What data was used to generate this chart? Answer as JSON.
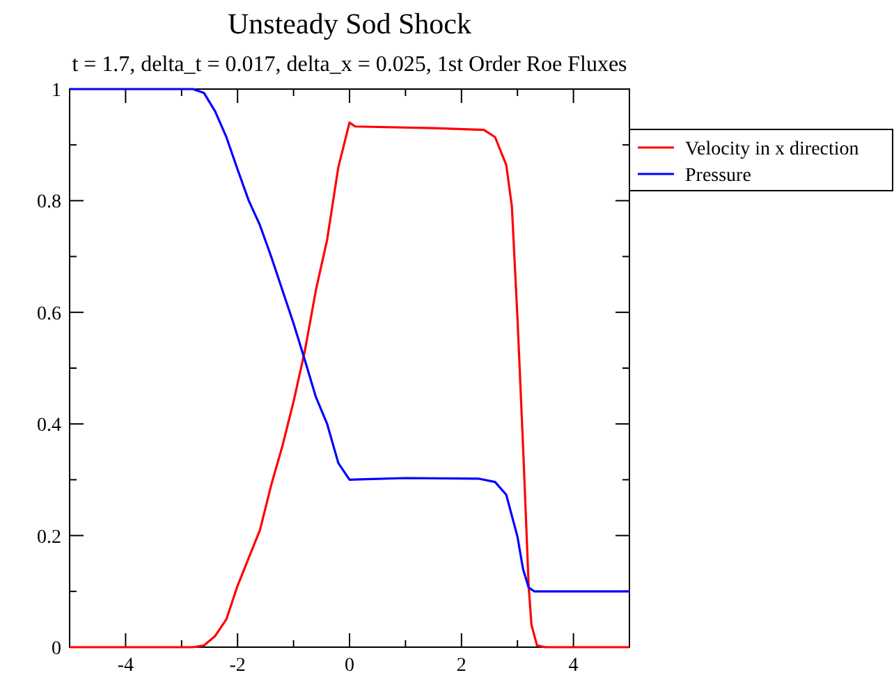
{
  "chart_data": {
    "type": "line",
    "title": "Unsteady Sod Shock",
    "subtitle": "t = 1.7, delta_t = 0.017, delta_x = 0.025, 1st Order Roe Fluxes",
    "xlim": [
      -5,
      5
    ],
    "ylim": [
      0,
      1
    ],
    "xticks": [
      {
        "value": -5,
        "label": null
      },
      -4,
      {
        "value": -3,
        "label": null
      },
      -2,
      {
        "value": -1,
        "label": null
      },
      0,
      {
        "value": 1,
        "label": null
      },
      2,
      {
        "value": 3,
        "label": null
      },
      4,
      {
        "value": 5,
        "label": null
      }
    ],
    "yticks": [
      0,
      {
        "value": 0.1,
        "label": null
      },
      0.2,
      {
        "value": 0.3,
        "label": null
      },
      0.4,
      {
        "value": 0.5,
        "label": null
      },
      0.6,
      {
        "value": 0.7,
        "label": null
      },
      0.8,
      {
        "value": 0.9,
        "label": null
      },
      1
    ],
    "grid": false,
    "legend": "top right",
    "line_style": "solid",
    "marker": "none",
    "series": [
      {
        "name": "Velocity in x direction",
        "color": "#ff0000",
        "x": [
          -5,
          -2.8,
          -2.6,
          -2.4,
          -2.2,
          -2.0,
          -1.8,
          -1.6,
          -1.4,
          -1.2,
          -1.0,
          -0.8,
          -0.6,
          -0.4,
          -0.2,
          0,
          0.1,
          1.5,
          2.4,
          2.6,
          2.8,
          2.9,
          3.0,
          3.1,
          3.2,
          3.25,
          3.35,
          3.5,
          5
        ],
        "values": [
          0,
          0,
          0.003,
          0.02,
          0.05,
          0.11,
          0.16,
          0.21,
          0.29,
          0.36,
          0.44,
          0.53,
          0.64,
          0.73,
          0.86,
          0.94,
          0.933,
          0.93,
          0.927,
          0.914,
          0.864,
          0.79,
          0.59,
          0.36,
          0.11,
          0.04,
          0.003,
          0,
          0
        ]
      },
      {
        "name": "Pressure",
        "color": "#0000ff",
        "x": [
          -5,
          -2.8,
          -2.6,
          -2.4,
          -2.2,
          -2.0,
          -1.8,
          -1.6,
          -1.4,
          -1.2,
          -1.0,
          -0.8,
          -0.6,
          -0.4,
          -0.2,
          0,
          1,
          2.3,
          2.6,
          2.8,
          3.0,
          3.1,
          3.2,
          3.3,
          5
        ],
        "values": [
          1,
          1,
          0.993,
          0.96,
          0.914,
          0.856,
          0.8,
          0.756,
          0.7,
          0.64,
          0.58,
          0.515,
          0.448,
          0.4,
          0.33,
          0.3,
          0.303,
          0.302,
          0.296,
          0.273,
          0.198,
          0.14,
          0.107,
          0.1,
          0.1
        ]
      }
    ]
  }
}
